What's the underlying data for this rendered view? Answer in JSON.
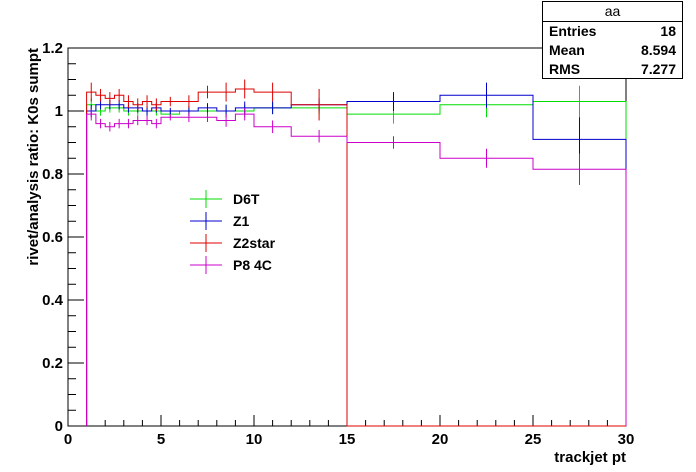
{
  "stats": {
    "title": "aa",
    "rows": [
      {
        "label": "Entries",
        "value": "18"
      },
      {
        "label": "Mean",
        "value": "8.594"
      },
      {
        "label": "RMS",
        "value": "7.277"
      }
    ]
  },
  "chart_data": {
    "type": "line",
    "xlabel": "trackjet pt",
    "ylabel": "rivet/analysis ratio: K0s sumpt",
    "xlim": [
      0,
      30
    ],
    "ylim": [
      0,
      1.2
    ],
    "x_ticks": [
      "0",
      "5",
      "10",
      "15",
      "20",
      "25",
      "30"
    ],
    "y_ticks": [
      "0",
      "0.2",
      "0.4",
      "0.6",
      "0.8",
      "1",
      "1.2"
    ],
    "grid": false,
    "legend_position": "center-left",
    "bin_edges": [
      1,
      1.5,
      2,
      2.5,
      3,
      3.5,
      4,
      4.5,
      5,
      6,
      7,
      8,
      9,
      10,
      12,
      15,
      20,
      25,
      30
    ],
    "series": [
      {
        "name": "D6T",
        "color": "#00dd00",
        "values": [
          1.02,
          1.0,
          1.01,
          1.01,
          1.0,
          1.0,
          1.0,
          1.0,
          0.99,
          1.0,
          1.0,
          1.0,
          1.0,
          1.01,
          1.01,
          0.99,
          1.02,
          1.03
        ],
        "errors": [
          0.02,
          0.015,
          0.015,
          0.015,
          0.015,
          0.015,
          0.015,
          0.015,
          0.01,
          0.015,
          0.015,
          0.02,
          0.02,
          0.02,
          0.02,
          0.03,
          0.04,
          0.05
        ]
      },
      {
        "name": "Z1",
        "color": "#0000cc",
        "values": [
          1.0,
          1.02,
          1.02,
          1.02,
          1.01,
          1.01,
          1.0,
          1.01,
          1.0,
          1.0,
          1.01,
          1.0,
          1.01,
          1.01,
          1.02,
          1.03,
          1.05,
          0.91
        ],
        "errors": [
          0.02,
          0.015,
          0.015,
          0.015,
          0.015,
          0.015,
          0.015,
          0.015,
          0.01,
          0.015,
          0.015,
          0.02,
          0.02,
          0.02,
          0.02,
          0.03,
          0.04,
          0.07
        ]
      },
      {
        "name": "Z2star",
        "color": "#dd0000",
        "values": [
          1.06,
          1.05,
          1.04,
          1.05,
          1.03,
          1.02,
          1.03,
          1.02,
          1.03,
          1.03,
          1.06,
          1.06,
          1.07,
          1.06,
          1.02,
          0,
          0,
          0
        ],
        "errors": [
          0.03,
          0.02,
          0.02,
          0.02,
          0.02,
          0.02,
          0.02,
          0.02,
          0.015,
          0.02,
          0.02,
          0.03,
          0.03,
          0.03,
          0.05,
          0,
          0,
          0
        ]
      },
      {
        "name": "P8 4C",
        "color": "#cc00cc",
        "values": [
          0.99,
          0.96,
          0.95,
          0.96,
          0.96,
          0.97,
          0.97,
          0.96,
          0.98,
          0.98,
          0.98,
          0.97,
          0.99,
          0.95,
          0.92,
          0.9,
          0.85,
          0.815
        ],
        "errors": [
          0.02,
          0.015,
          0.015,
          0.015,
          0.015,
          0.015,
          0.015,
          0.015,
          0.01,
          0.015,
          0.015,
          0.02,
          0.02,
          0.02,
          0.02,
          0.02,
          0.03,
          0.05
        ]
      }
    ]
  }
}
